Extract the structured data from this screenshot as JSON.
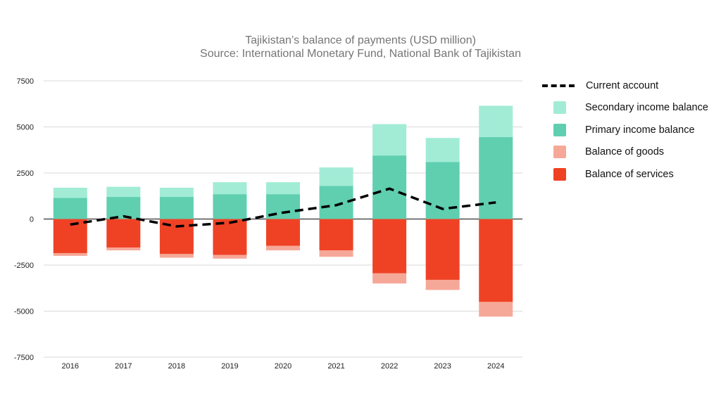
{
  "chart_data": {
    "type": "bar",
    "title": "Tajikistan’s balance of payments (USD million)",
    "subtitle": "Source: International Monetary Fund, National Bank of Tajikistan",
    "categories": [
      "2016",
      "2017",
      "2018",
      "2019",
      "2020",
      "2021",
      "2022",
      "2023",
      "2024"
    ],
    "ylim": [
      -7500,
      7500
    ],
    "yticks": [
      7500,
      5000,
      2500,
      0,
      -2500,
      -5000,
      -7500
    ],
    "ytick_labels": [
      "7500",
      "5000",
      "2500",
      "0",
      "-2500",
      "-5000",
      "-7500"
    ],
    "stacked": true,
    "legend_position": "right",
    "series": [
      {
        "name": "Primary income balance",
        "kind": "bar",
        "color": "#5fcfb0",
        "values": [
          1150,
          1200,
          1200,
          1350,
          1350,
          1800,
          3450,
          3100,
          4450
        ]
      },
      {
        "name": "Secondary income balance",
        "kind": "bar",
        "color": "#a2ecd6",
        "values": [
          550,
          550,
          500,
          650,
          650,
          1000,
          1700,
          1300,
          1700
        ]
      },
      {
        "name": "Balance of services",
        "kind": "bar",
        "color": "#ef4225",
        "values": [
          -1850,
          -1550,
          -1900,
          -1950,
          -1450,
          -1700,
          -2950,
          -3300,
          -4500
        ]
      },
      {
        "name": "Balance of goods",
        "kind": "bar",
        "color": "#f6a898",
        "values": [
          -150,
          -150,
          -200,
          -200,
          -250,
          -350,
          -550,
          -550,
          -800
        ]
      },
      {
        "name": "Current account",
        "kind": "line",
        "color": "#000000",
        "values": [
          -300,
          150,
          -400,
          -200,
          350,
          750,
          1650,
          550,
          900
        ]
      }
    ],
    "legend_order": [
      "Current account",
      "Secondary income balance",
      "Primary income balance",
      "Balance of goods",
      "Balance of services"
    ]
  }
}
